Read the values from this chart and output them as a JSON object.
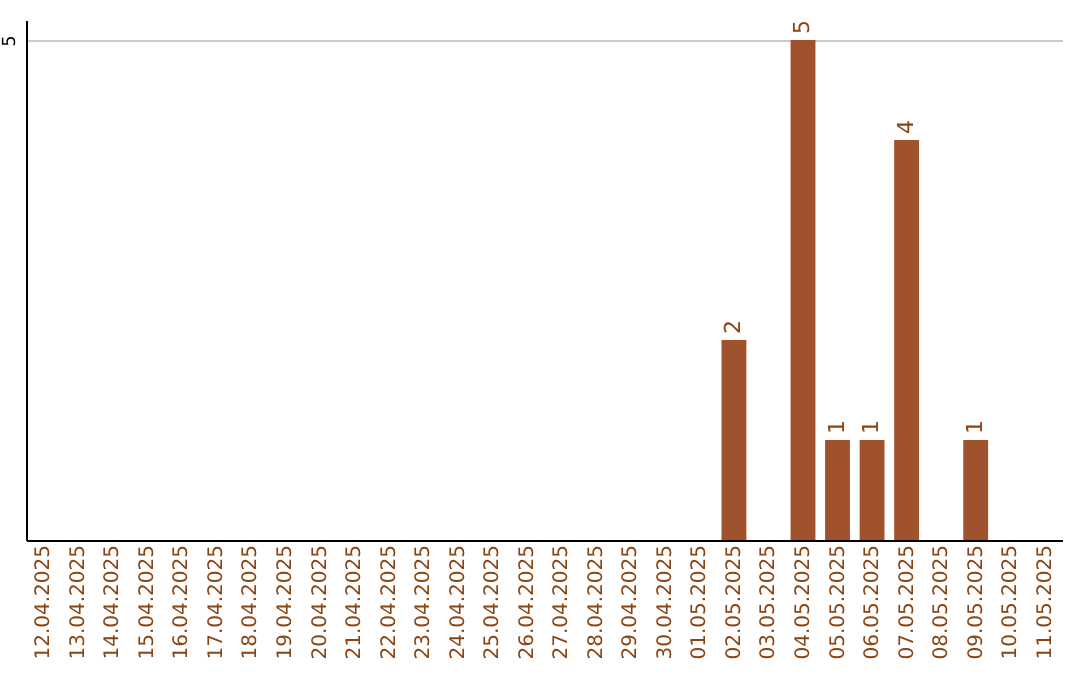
{
  "chart_data": {
    "type": "bar",
    "categories": [
      "12.04.2025",
      "13.04.2025",
      "14.04.2025",
      "15.04.2025",
      "16.04.2025",
      "17.04.2025",
      "18.04.2025",
      "19.04.2025",
      "20.04.2025",
      "21.04.2025",
      "22.04.2025",
      "23.04.2025",
      "24.04.2025",
      "25.04.2025",
      "26.04.2025",
      "27.04.2025",
      "28.04.2025",
      "29.04.2025",
      "30.04.2025",
      "01.05.2025",
      "02.05.2025",
      "03.05.2025",
      "04.05.2025",
      "05.05.2025",
      "06.05.2025",
      "07.05.2025",
      "08.05.2025",
      "09.05.2025",
      "10.05.2025",
      "11.05.2025"
    ],
    "values": [
      null,
      null,
      null,
      null,
      null,
      null,
      null,
      null,
      null,
      null,
      null,
      null,
      null,
      null,
      null,
      null,
      null,
      null,
      null,
      null,
      2,
      null,
      5,
      1,
      1,
      4,
      null,
      1,
      null,
      null
    ],
    "color": "#a0522d",
    "ylim": [
      0,
      5.2
    ],
    "yticks": [
      5
    ],
    "grid": "y",
    "data_labels": true
  }
}
